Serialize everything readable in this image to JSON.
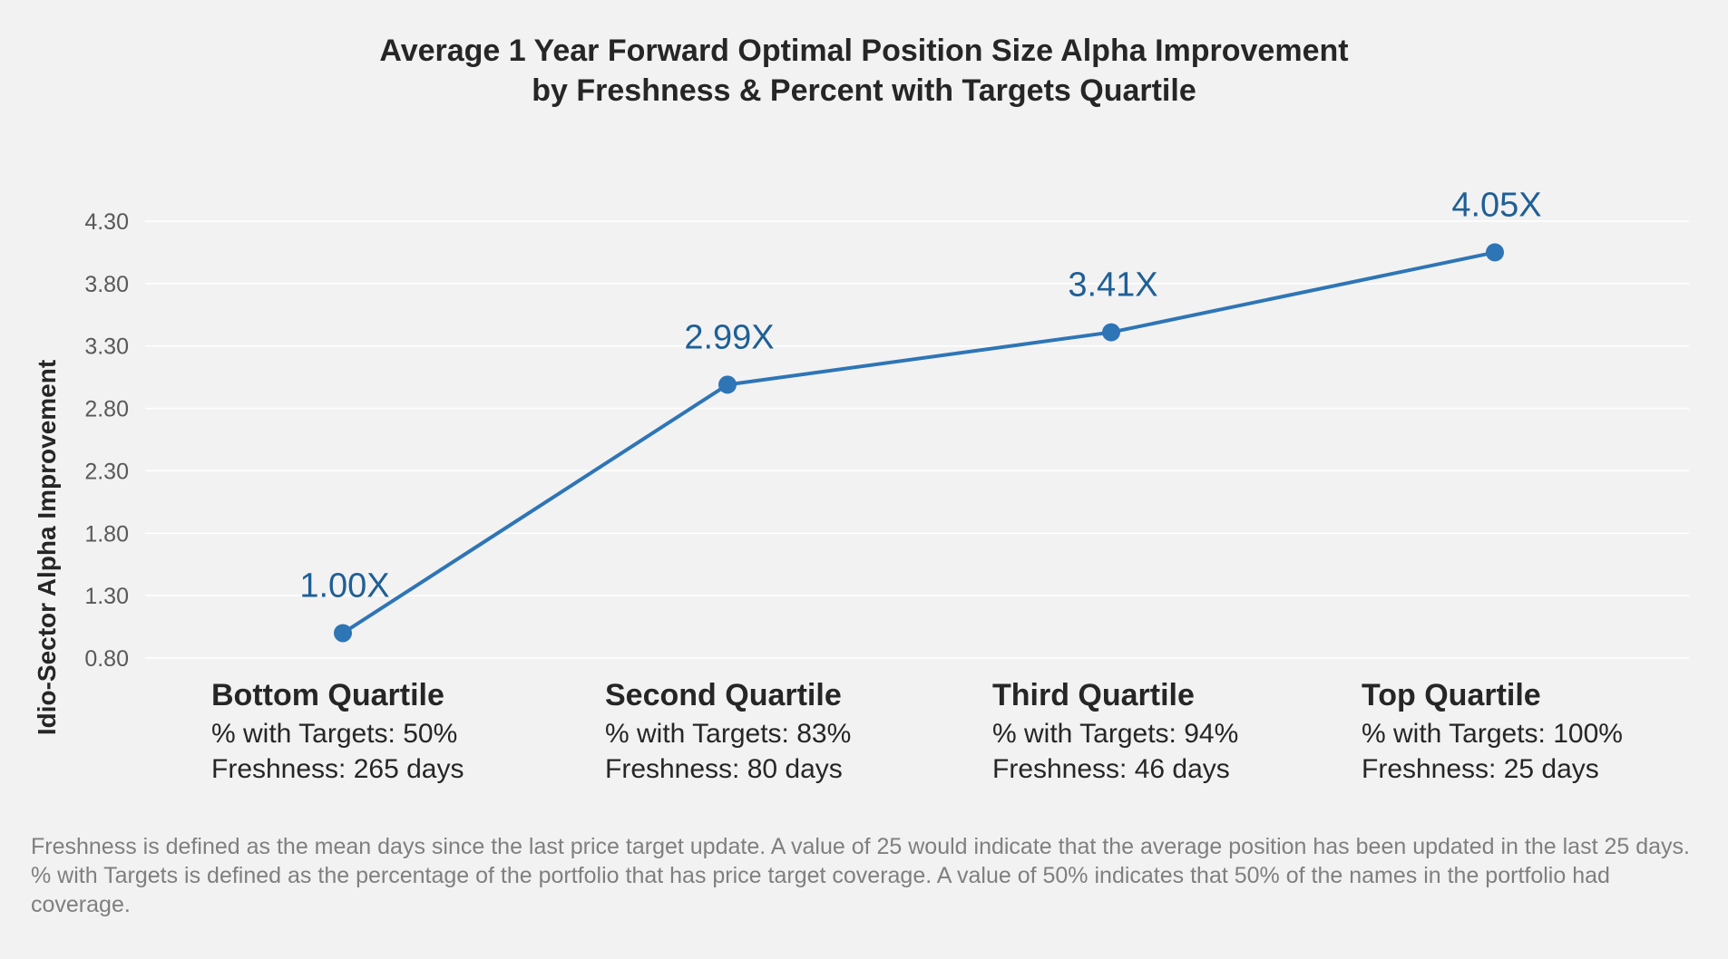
{
  "title_line1": "Average 1 Year Forward Optimal Position Size Alpha Improvement",
  "title_line2": "by Freshness & Percent with Targets Quartile",
  "chart_data": {
    "type": "line",
    "title": "Average 1 Year Forward Optimal Position Size Alpha Improvement by Freshness & Percent with Targets Quartile",
    "xlabel": "",
    "ylabel": "Idio-Sector Alpha Improvement",
    "categories": [
      "Bottom Quartile",
      "Second Quartile",
      "Third Quartile",
      "Top Quartile"
    ],
    "values": [
      1.0,
      2.99,
      3.41,
      4.05
    ],
    "data_labels": [
      "1.00X",
      "2.99X",
      "3.41X",
      "4.05X"
    ],
    "ylim": [
      0.8,
      4.3
    ],
    "yticks": [
      "0.80",
      "1.30",
      "1.80",
      "2.30",
      "2.80",
      "3.30",
      "3.80",
      "4.30"
    ],
    "grid": true,
    "legend": "none",
    "line_color": "#2e75b6",
    "label_color": "#1f5f96"
  },
  "categories_detail": [
    {
      "name": "Bottom Quartile",
      "targets": "% with Targets: 50%",
      "freshness": "Freshness: 265 days"
    },
    {
      "name": "Second Quartile",
      "targets": "% with Targets: 83%",
      "freshness": "Freshness: 80 days"
    },
    {
      "name": "Third Quartile",
      "targets": "% with Targets: 94%",
      "freshness": "Freshness: 46 days"
    },
    {
      "name": "Top Quartile",
      "targets": "% with Targets: 100%",
      "freshness": "Freshness: 25 days"
    }
  ],
  "footnote": {
    "line1": "Freshness is defined as the mean days since the last price target update. A value of 25 would indicate that the average position has been updated in the last 25 days.",
    "line2": "% with Targets is defined as the percentage of the portfolio that has price target coverage. A value of 50% indicates that 50% of the names in the portfolio had coverage."
  }
}
